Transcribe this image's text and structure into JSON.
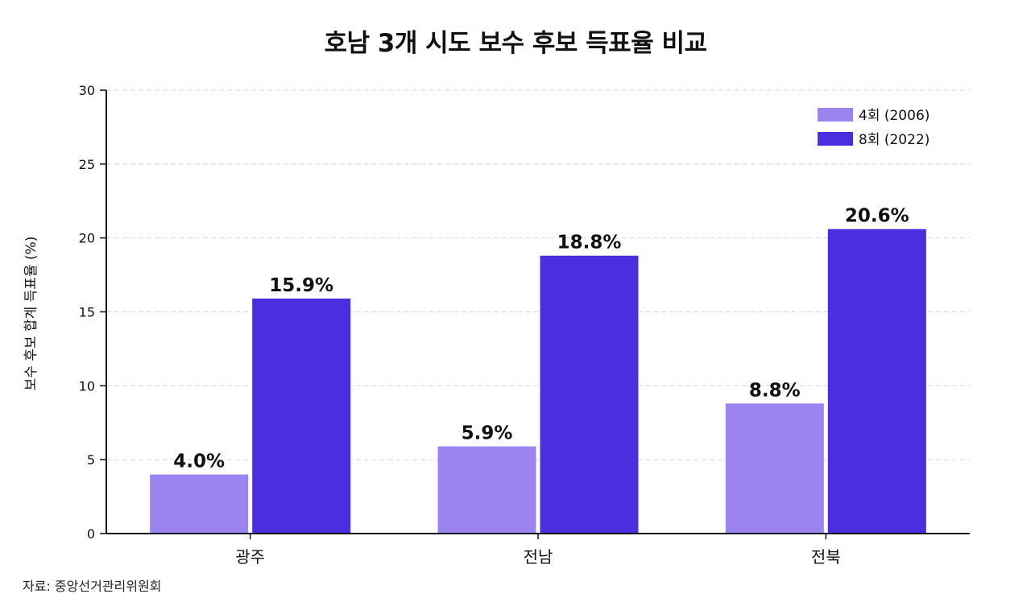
{
  "chart_data": {
    "type": "bar",
    "title": "호남 3개 시도 보수 후보 득표율 비교",
    "xlabel": "",
    "ylabel": "보수 후보 합계 득표율 (%)",
    "categories": [
      "광주",
      "전남",
      "전북"
    ],
    "series": [
      {
        "name": "4회 (2006)",
        "values": [
          4.0,
          5.9,
          8.8
        ],
        "labels": [
          "4.0%",
          "5.9%",
          "8.8%"
        ],
        "color": "#9b84ee"
      },
      {
        "name": "8회 (2022)",
        "values": [
          15.9,
          18.8,
          20.6
        ],
        "labels": [
          "15.9%",
          "18.8%",
          "20.6%"
        ],
        "color": "#4a2fe0"
      }
    ],
    "ylim": [
      0,
      30
    ],
    "yticks": [
      0,
      5,
      10,
      15,
      20,
      25,
      30
    ],
    "grid": true,
    "legend_position": "top-right"
  },
  "source": "자료: 중앙선거관리위원회"
}
